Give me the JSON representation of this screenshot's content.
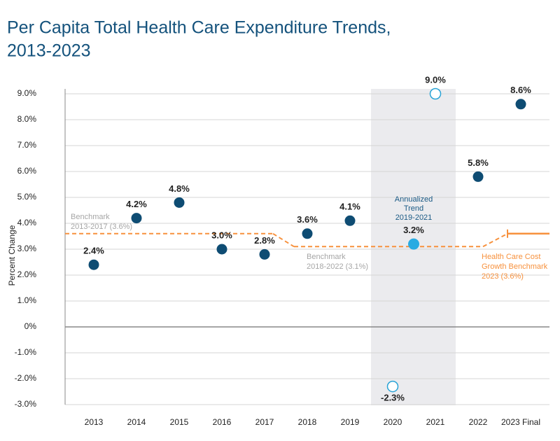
{
  "chart_data": {
    "type": "scatter",
    "title_lines": [
      "Per Capita Total Health Care Expenditure Trends,",
      "2013-2023"
    ],
    "y_label": "Percent Change",
    "categories": [
      "2013",
      "2014",
      "2015",
      "2016",
      "2017",
      "2018",
      "2019",
      "2020",
      "2021",
      "2022",
      "2023 Final"
    ],
    "ylim": [
      -3,
      9
    ],
    "yticks": [
      {
        "value": 9,
        "label": "9.0%"
      },
      {
        "value": 8,
        "label": "8.0%"
      },
      {
        "value": 7,
        "label": "7.0%"
      },
      {
        "value": 6,
        "label": "6.0%"
      },
      {
        "value": 5,
        "label": "5.0%"
      },
      {
        "value": 4,
        "label": "4.0%"
      },
      {
        "value": 3,
        "label": "3.0%"
      },
      {
        "value": 2,
        "label": "2.0%"
      },
      {
        "value": 1,
        "label": "1.0%"
      },
      {
        "value": 0,
        "label": "0%"
      },
      {
        "value": -1,
        "label": "-1.0%"
      },
      {
        "value": -2,
        "label": "-2.0%"
      },
      {
        "value": -3,
        "label": "-3.0%"
      }
    ],
    "grid": true,
    "series": [
      {
        "color": "#0e4c73",
        "hollow": false,
        "values": [
          2.4,
          4.2,
          4.8,
          3.0,
          2.8,
          3.6,
          4.1,
          null,
          null,
          5.8,
          8.6
        ],
        "value_labels": [
          "2.4%",
          "4.2%",
          "4.8%",
          "3.0%",
          "2.8%",
          "3.6%",
          "4.1%",
          null,
          null,
          "5.8%",
          "8.6%"
        ]
      },
      {
        "color": "#29a3d6",
        "hollow": true,
        "values": [
          null,
          null,
          null,
          null,
          null,
          null,
          null,
          -2.3,
          9.0,
          null,
          null
        ],
        "value_labels": [
          null,
          null,
          null,
          null,
          null,
          null,
          null,
          "-2.3%",
          "9.0%",
          null,
          null
        ]
      }
    ],
    "annualized": {
      "lines": [
        "Annualized",
        "Trend",
        "2019-2021"
      ],
      "value": 3.2,
      "value_label": "3.2%",
      "color": "#29abe2"
    },
    "benchmarks": [
      {
        "lines": [
          "Benchmark",
          "2013-2017 (3.6%)"
        ],
        "value": 3.6
      },
      {
        "lines": [
          "Benchmark",
          "2018-2022 (3.1%)"
        ],
        "value": 3.1
      },
      {
        "lines": [
          "Health Care Cost",
          "Growth Benchmark",
          "2023 (3.6%)"
        ],
        "value": 3.6
      }
    ],
    "benchmark_color": "#f7913d"
  }
}
